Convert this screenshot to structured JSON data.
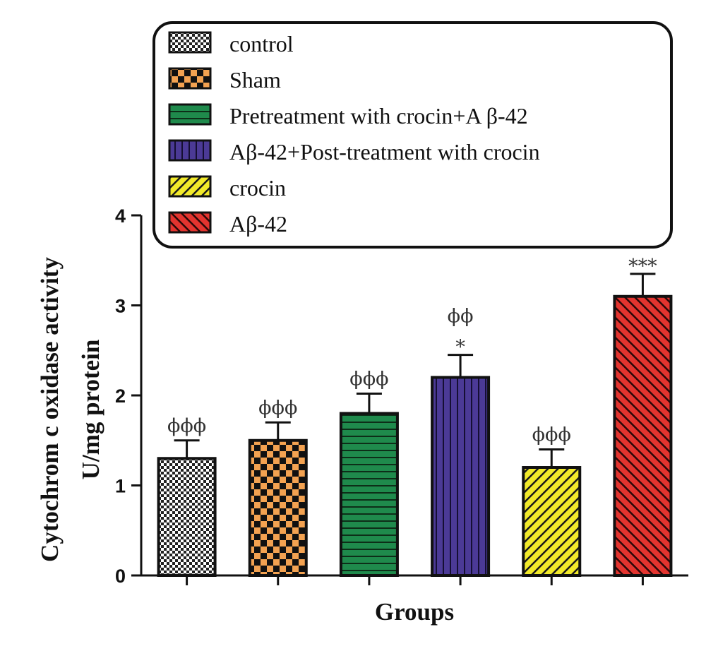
{
  "chart_data": {
    "type": "bar",
    "categories": [
      "control",
      "Sham",
      "Pretreatment with crocin+A β-42",
      "Aβ-42+Post-treatment with crocin",
      "crocin",
      "Aβ-42"
    ],
    "values": [
      1.3,
      1.5,
      1.8,
      2.2,
      1.2,
      3.1
    ],
    "errors": [
      0.2,
      0.2,
      0.22,
      0.25,
      0.2,
      0.25
    ],
    "annotations": [
      [
        "ϕϕϕ"
      ],
      [
        "ϕϕϕ"
      ],
      [
        "ϕϕϕ"
      ],
      [
        "ϕϕ",
        "*"
      ],
      [
        "ϕϕϕ"
      ],
      [
        "***"
      ]
    ],
    "xlabel": "Groups",
    "ylabel_lines": [
      "Cytochrom c oxidase activity",
      "U/mg protein"
    ],
    "ylim": [
      0,
      4
    ],
    "yticks": [
      "0",
      "1",
      "2",
      "3",
      "4"
    ],
    "legend_placement": "top",
    "colors": [
      "#e8e8e8",
      "#f3a251",
      "#1f8a4c",
      "#4b3a96",
      "#f2ea2a",
      "#e3342f"
    ],
    "patterns": [
      "checker-fine",
      "checker-large",
      "horizontal-lines",
      "vertical-lines",
      "diagonal-up",
      "diagonal-down"
    ]
  }
}
